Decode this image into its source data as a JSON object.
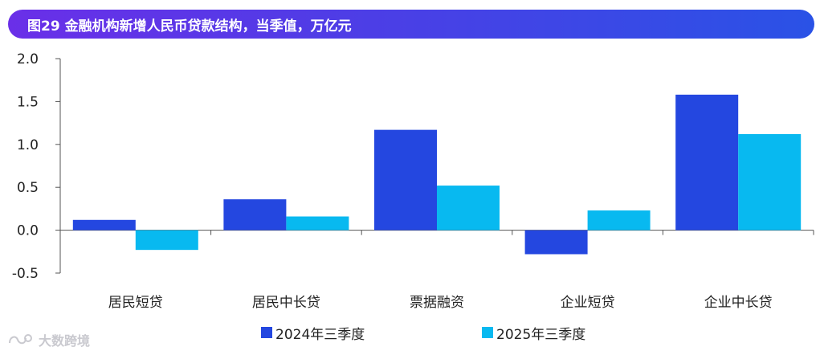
{
  "title": "图29 金融机构新增人民币贷款结构，当季值，万亿元",
  "watermark": "大数跨境",
  "colors": {
    "series1": "#2447e0",
    "series2": "#08b9f0",
    "title_start": "#6a2fe8",
    "title_end": "#2a52e6"
  },
  "chart_data": {
    "type": "bar",
    "title": "图29 金融机构新增人民币贷款结构，当季值，万亿元",
    "categories": [
      "居民短贷",
      "居民中长贷",
      "票据融资",
      "企业短贷",
      "企业中长贷"
    ],
    "series": [
      {
        "name": "2024年三季度",
        "values": [
          0.12,
          0.36,
          1.17,
          -0.28,
          1.58
        ]
      },
      {
        "name": "2025年三季度",
        "values": [
          -0.23,
          0.16,
          0.52,
          0.23,
          1.12
        ]
      }
    ],
    "yticks": [
      "2.0",
      "1.5",
      "1.0",
      "0.5",
      "0.0",
      "-0.5"
    ],
    "ylim": [
      -0.5,
      2.0
    ],
    "grid": false,
    "legend_position": "bottom"
  }
}
